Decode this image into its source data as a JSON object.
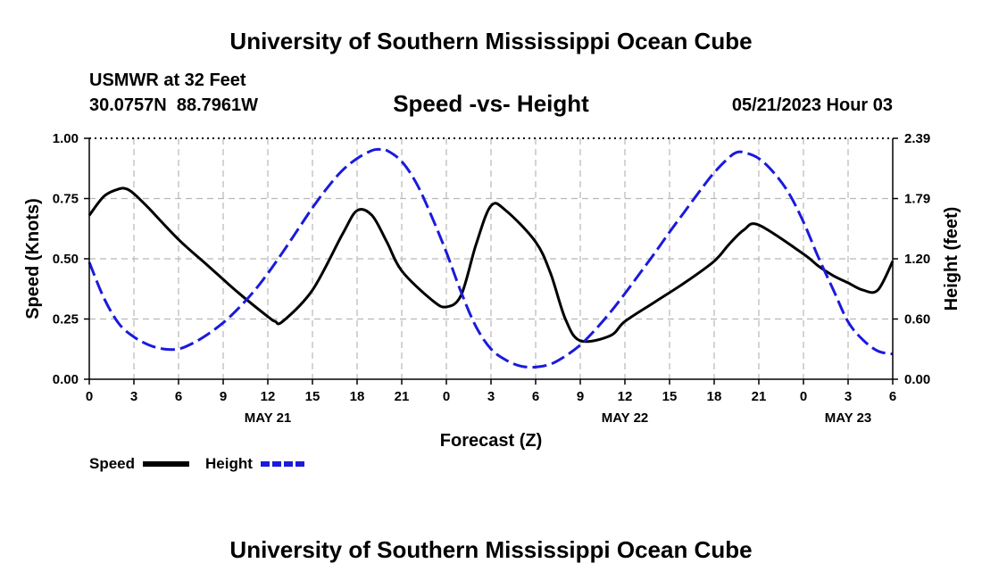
{
  "page": {
    "title_top": "University of Southern Mississippi Ocean Cube",
    "title_bottom": "University of Southern Mississippi Ocean Cube"
  },
  "station": {
    "name_line": "USMWR at 32 Feet",
    "coords_line": "30.0757N  88.7961W",
    "datetime": "05/21/2023 Hour 03"
  },
  "chart_data": {
    "type": "line",
    "title": "Speed -vs- Height",
    "xlabel": "Forecast (Z)",
    "ylabel_left": "Speed (Knots)",
    "ylabel_right": "Height (feet)",
    "x_unit": "hours since 2023-05-21 00Z",
    "xlim": [
      0,
      54
    ],
    "x_ticks": [
      0,
      3,
      6,
      9,
      12,
      15,
      18,
      21,
      24,
      27,
      30,
      33,
      36,
      39,
      42,
      45,
      48,
      51,
      54
    ],
    "x_tick_labels": [
      "0",
      "3",
      "6",
      "9",
      "12",
      "15",
      "18",
      "21",
      "0",
      "3",
      "6",
      "9",
      "12",
      "15",
      "18",
      "21",
      "0",
      "3",
      "6"
    ],
    "date_labels": [
      {
        "x": 12,
        "label": "MAY 21"
      },
      {
        "x": 36,
        "label": "MAY 22"
      },
      {
        "x": 51,
        "label": "MAY 23"
      }
    ],
    "ylim_left": [
      0,
      1.0
    ],
    "y_ticks_left": [
      "0.00",
      "0.25",
      "0.50",
      "0.75",
      "1.00"
    ],
    "ylim_right": [
      0,
      2.39
    ],
    "y_ticks_right": [
      "0.00",
      "0.60",
      "1.20",
      "1.79",
      "2.39"
    ],
    "grid": true,
    "legend": {
      "placement": "bottom-left",
      "entries": [
        {
          "label": "Speed",
          "color": "#000000",
          "style": "solid"
        },
        {
          "label": "Height",
          "color": "#1a1adc",
          "style": "dashed"
        }
      ]
    },
    "series": [
      {
        "name": "Speed",
        "axis": "left",
        "color": "#000000",
        "style": "solid",
        "x": [
          0,
          1,
          2,
          2.5,
          3,
          4,
          6,
          8,
          10,
          12,
          12.5,
          13,
          15,
          17,
          18,
          19,
          20,
          21,
          23,
          24,
          25,
          26,
          27,
          28,
          30,
          31,
          32,
          33,
          35,
          36,
          38,
          40,
          42,
          43,
          44,
          45,
          48,
          49,
          50,
          51,
          52,
          53,
          54
        ],
        "values": [
          0.68,
          0.76,
          0.79,
          0.79,
          0.77,
          0.71,
          0.58,
          0.47,
          0.36,
          0.26,
          0.24,
          0.24,
          0.37,
          0.6,
          0.7,
          0.68,
          0.57,
          0.45,
          0.33,
          0.3,
          0.35,
          0.56,
          0.72,
          0.7,
          0.57,
          0.44,
          0.25,
          0.16,
          0.18,
          0.24,
          0.32,
          0.4,
          0.49,
          0.56,
          0.62,
          0.64,
          0.52,
          0.47,
          0.43,
          0.4,
          0.37,
          0.37,
          0.49
        ]
      },
      {
        "name": "Height",
        "axis": "right",
        "color": "#1a1adc",
        "style": "dashed",
        "x": [
          0,
          1,
          2,
          3,
          4,
          5,
          6,
          7,
          8,
          9,
          10,
          11,
          12,
          13,
          14,
          15,
          16,
          17,
          18,
          19,
          19.5,
          20,
          21,
          22,
          23,
          24,
          25,
          26,
          27,
          28,
          29,
          30,
          31,
          32,
          33,
          34,
          35,
          36,
          37,
          38,
          39,
          40,
          41,
          42,
          43,
          43.5,
          44,
          45,
          46,
          47,
          48,
          49,
          50,
          51,
          52,
          53,
          54
        ],
        "values": [
          1.16,
          0.8,
          0.55,
          0.42,
          0.34,
          0.3,
          0.3,
          0.36,
          0.45,
          0.56,
          0.7,
          0.86,
          1.05,
          1.26,
          1.48,
          1.7,
          1.9,
          2.07,
          2.19,
          2.27,
          2.28,
          2.27,
          2.16,
          1.94,
          1.62,
          1.26,
          0.86,
          0.52,
          0.3,
          0.19,
          0.13,
          0.12,
          0.15,
          0.23,
          0.34,
          0.49,
          0.66,
          0.85,
          1.05,
          1.25,
          1.46,
          1.66,
          1.86,
          2.05,
          2.2,
          2.25,
          2.25,
          2.19,
          2.05,
          1.85,
          1.56,
          1.21,
          0.89,
          0.57,
          0.39,
          0.28,
          0.25
        ]
      }
    ]
  }
}
